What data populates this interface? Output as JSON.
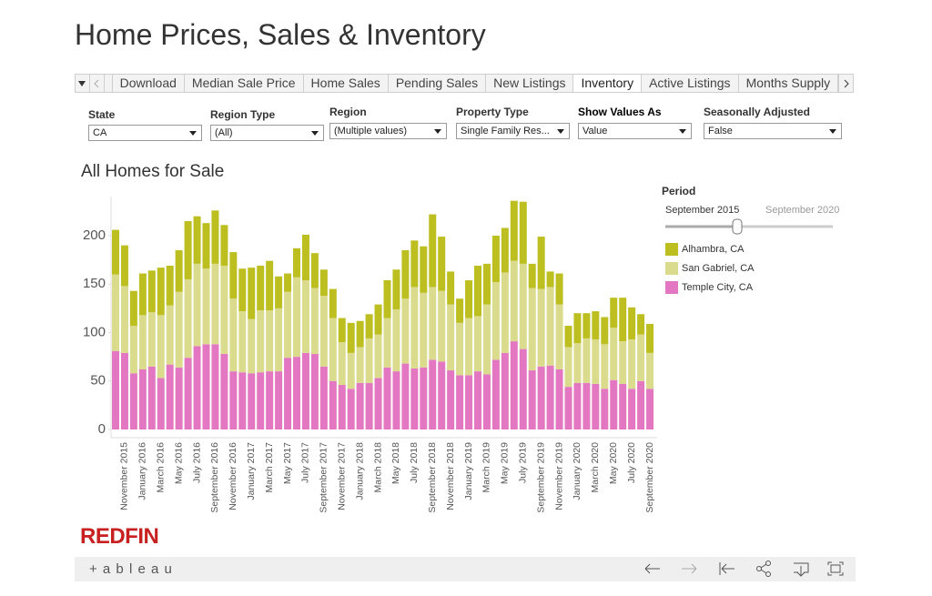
{
  "header": {
    "title": "Home Prices, Sales & Inventory"
  },
  "tabs": {
    "items": [
      "Download",
      "Median Sale Price",
      "Home Sales",
      "Pending Sales",
      "New Listings",
      "Inventory",
      "Active Listings",
      "Months Supply"
    ],
    "selected": "Inventory"
  },
  "filters": [
    {
      "label": "State",
      "value": "CA"
    },
    {
      "label": "Region Type",
      "value": "(All)"
    },
    {
      "label": "Region",
      "value": "(Multiple values)"
    },
    {
      "label": "Property Type",
      "value": "Single Family Res..."
    },
    {
      "label": "Show Values As",
      "value": "Value"
    },
    {
      "label": "Seasonally Adjusted",
      "value": "False"
    }
  ],
  "period": {
    "label": "Period",
    "start": "September 2015",
    "end": "September 2020"
  },
  "logo": "REDFIN",
  "footer": {
    "brand": "+ a b l e a u"
  },
  "chart_data": {
    "type": "stacked_bar",
    "title": "All Homes for Sale",
    "categories": [
      null,
      "November 2015",
      null,
      "January 2016",
      null,
      "March 2016",
      null,
      "May 2016",
      null,
      "July 2016",
      null,
      "September 2016",
      null,
      "November 2016",
      null,
      "January 2017",
      null,
      "March 2017",
      null,
      "May 2017",
      null,
      "July 2017",
      null,
      "September 2017",
      null,
      "November 2017",
      null,
      "January 2018",
      null,
      "March 2018",
      null,
      "May 2018",
      null,
      "July 2018",
      null,
      "September 2018",
      null,
      "November 2018",
      null,
      "January 2019",
      null,
      "March 2019",
      null,
      "May 2019",
      null,
      "July 2019",
      null,
      "September 2019",
      null,
      "November 2019",
      null,
      "January 2020",
      null,
      "March 2020",
      null,
      "May 2020",
      null,
      "July 2020",
      null,
      "September 2020"
    ],
    "series": [
      {
        "name": "Alhambra, CA",
        "color": "#bcbf1f",
        "values": [
          46,
          42,
          36,
          43,
          43,
          49,
          41,
          43,
          60,
          49,
          47,
          55,
          42,
          48,
          44,
          53,
          46,
          51,
          33,
          19,
          30,
          47,
          36,
          27,
          30,
          25,
          31,
          27,
          25,
          31,
          39,
          41,
          50,
          48,
          48,
          75,
          56,
          34,
          25,
          39,
          52,
          42,
          48,
          46,
          62,
          64,
          25,
          54,
          16,
          32,
          22,
          31,
          26,
          29,
          28,
          31,
          45,
          33,
          21,
          30
        ]
      },
      {
        "name": "San Gabriel, CA",
        "color": "#dbdb8d",
        "values": [
          79,
          69,
          49,
          56,
          56,
          65,
          61,
          78,
          81,
          85,
          78,
          83,
          91,
          75,
          63,
          56,
          64,
          63,
          65,
          68,
          82,
          75,
          68,
          73,
          65,
          44,
          37,
          37,
          46,
          45,
          51,
          64,
          67,
          84,
          77,
          75,
          73,
          68,
          54,
          59,
          57,
          72,
          80,
          83,
          83,
          88,
          85,
          80,
          81,
          67,
          41,
          41,
          46,
          46,
          46,
          54,
          44,
          51,
          48,
          37
        ]
      },
      {
        "name": "Temple City, CA",
        "color": "#e377c2",
        "values": [
          81,
          79,
          58,
          62,
          65,
          53,
          67,
          64,
          74,
          86,
          88,
          88,
          78,
          60,
          59,
          58,
          59,
          60,
          60,
          74,
          75,
          79,
          78,
          65,
          50,
          46,
          42,
          48,
          48,
          53,
          64,
          60,
          68,
          63,
          64,
          72,
          70,
          61,
          56,
          56,
          60,
          57,
          72,
          79,
          91,
          83,
          61,
          65,
          66,
          62,
          44,
          48,
          48,
          47,
          42,
          51,
          47,
          42,
          50,
          42
        ]
      }
    ],
    "ylim": [
      0,
      240
    ],
    "yticks": [
      0,
      50,
      100,
      150,
      200
    ],
    "grid": false,
    "legend": "right"
  }
}
